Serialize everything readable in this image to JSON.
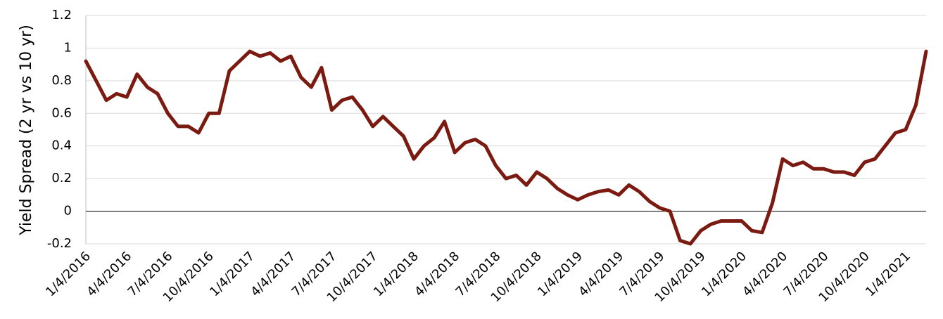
{
  "chart_data": {
    "type": "line",
    "y_label": "Yield Spread (2 yr vs 10 yr)",
    "categories": [
      "1/4/2016",
      null,
      null,
      null,
      "4/4/2016",
      null,
      null,
      null,
      "7/4/2016",
      null,
      null,
      null,
      "10/4/2016",
      null,
      null,
      null,
      "1/4/2017",
      null,
      null,
      null,
      "4/4/2017",
      null,
      null,
      null,
      "7/4/2017",
      null,
      null,
      null,
      "10/4/2017",
      null,
      null,
      null,
      "1/4/2018",
      null,
      null,
      null,
      "4/4/2018",
      null,
      null,
      null,
      "7/4/2018",
      null,
      null,
      null,
      "10/4/2018",
      null,
      null,
      null,
      "1/4/2019",
      null,
      null,
      null,
      "4/4/2019",
      null,
      null,
      null,
      "7/4/2019",
      null,
      null,
      null,
      "10/4/2019",
      null,
      null,
      null,
      "1/4/2020",
      null,
      null,
      null,
      "4/4/2020",
      null,
      null,
      null,
      "7/4/2020",
      null,
      null,
      null,
      "10/4/2020",
      null,
      null,
      null,
      "1/4/2021",
      null,
      null
    ],
    "series": [
      {
        "name": "Yield Spread",
        "color": "#7b1a10",
        "values": [
          0.92,
          0.8,
          0.68,
          0.72,
          0.7,
          0.84,
          0.76,
          0.72,
          0.6,
          0.52,
          0.52,
          0.48,
          0.6,
          0.6,
          0.86,
          0.92,
          0.98,
          0.95,
          0.97,
          0.92,
          0.95,
          0.82,
          0.76,
          0.88,
          0.62,
          0.68,
          0.7,
          0.62,
          0.52,
          0.58,
          0.52,
          0.46,
          0.32,
          0.4,
          0.45,
          0.55,
          0.36,
          0.42,
          0.44,
          0.4,
          0.28,
          0.2,
          0.22,
          0.16,
          0.24,
          0.2,
          0.14,
          0.1,
          0.07,
          0.1,
          0.12,
          0.13,
          0.1,
          0.16,
          0.12,
          0.06,
          0.02,
          0.0,
          -0.18,
          -0.2,
          -0.12,
          -0.08,
          -0.06,
          -0.06,
          -0.06,
          -0.12,
          -0.13,
          0.05,
          0.32,
          0.28,
          0.3,
          0.26,
          0.26,
          0.24,
          0.24,
          0.22,
          0.3,
          0.32,
          0.4,
          0.48,
          0.5,
          0.65,
          0.98
        ]
      }
    ],
    "ylim": [
      -0.2,
      1.2
    ],
    "yticks": [
      -0.2,
      0,
      0.2,
      0.4,
      0.6,
      0.8,
      1,
      1.2
    ],
    "grid": true
  }
}
